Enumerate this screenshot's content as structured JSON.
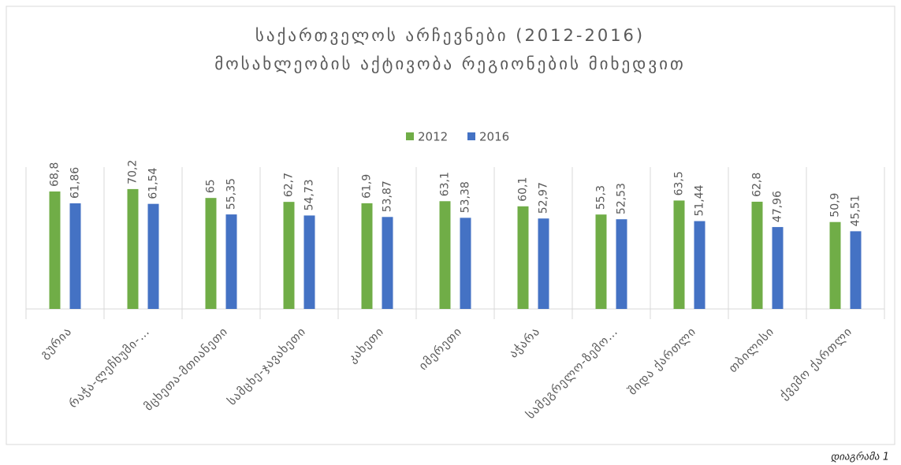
{
  "chart_data": {
    "type": "bar",
    "title": "საქართველოს არჩევნები (2012-2016)",
    "subtitle": "მოსახლეობის აქტივობა რეგიონების მიხედვით",
    "caption": "დიაგრამა 1",
    "categories": [
      "გურია",
      "რაჭა-ლეჩხუმი-…",
      "მცხეთა-მთიანეთი",
      "სამცხე-ჯავახეთი",
      "კახეთი",
      "იმერეთი",
      "აჭარა",
      "სამეგრელო-ზემო…",
      "შიდა ქართლი",
      "თბილისი",
      "ქვემო ქართლი"
    ],
    "series": [
      {
        "name": "2012",
        "color": "#70ad47",
        "values": [
          68.8,
          70.2,
          65,
          62.7,
          61.9,
          63.1,
          60.1,
          55.3,
          63.5,
          62.8,
          50.9
        ],
        "value_labels": [
          "68,8",
          "70,2",
          "65",
          "62,7",
          "61,9",
          "63,1",
          "60,1",
          "55,3",
          "63,5",
          "62,8",
          "50,9"
        ]
      },
      {
        "name": "2016",
        "color": "#4472c4",
        "values": [
          61.86,
          61.54,
          55.35,
          54.73,
          53.87,
          53.38,
          52.97,
          52.53,
          51.44,
          47.96,
          45.51
        ],
        "value_labels": [
          "61,86",
          "61,54",
          "55,35",
          "54,73",
          "53,87",
          "53,38",
          "52,97",
          "52,53",
          "51,44",
          "47,96",
          "45,51"
        ]
      }
    ],
    "ylim": [
      0,
      90
    ],
    "grid": false,
    "legend": "top"
  }
}
